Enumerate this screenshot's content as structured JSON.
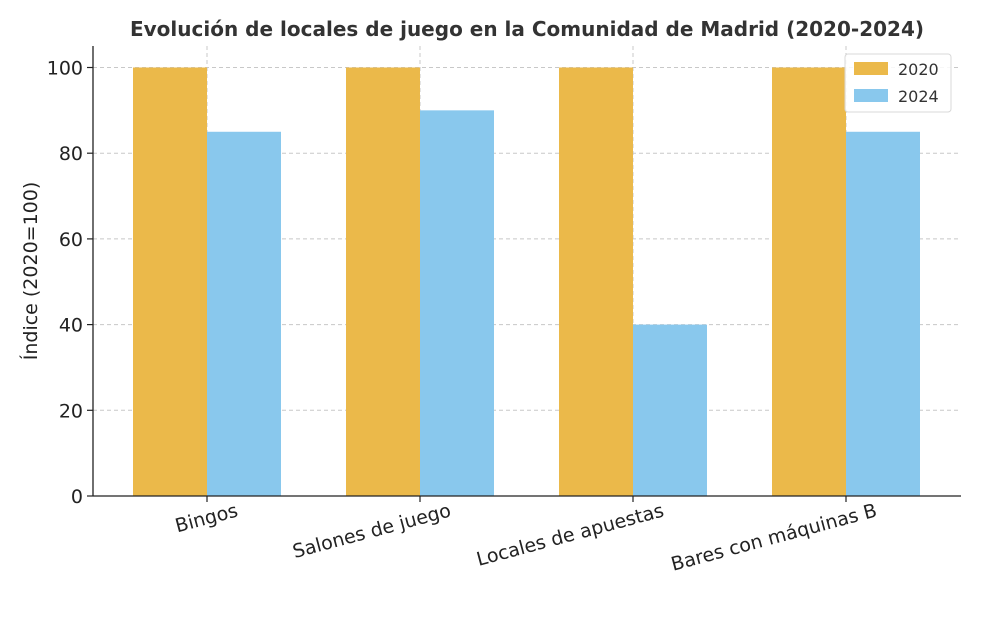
{
  "chart_data": {
    "type": "bar",
    "title": "Evolución de locales de juego en la Comunidad de Madrid (2020-2024)",
    "xlabel": "",
    "ylabel": "Índice (2020=100)",
    "categories": [
      "Bingos",
      "Salones de juego",
      "Locales de apuestas",
      "Bares con máquinas B"
    ],
    "series": [
      {
        "name": "2020",
        "values": [
          100,
          100,
          100,
          100
        ],
        "color": "#ebb94a"
      },
      {
        "name": "2024",
        "values": [
          85,
          90,
          40,
          85
        ],
        "color": "#89c8ed"
      }
    ],
    "ylim": [
      0,
      105
    ],
    "yticks": [
      "0",
      "20",
      "40",
      "60",
      "80",
      "100"
    ],
    "grid": true,
    "legend_position": "top-right"
  }
}
